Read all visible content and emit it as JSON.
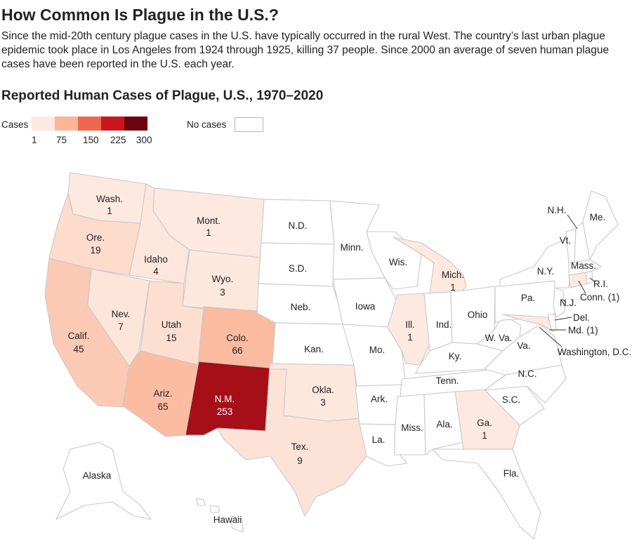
{
  "header": {
    "title": "How Common Is Plague in the U.S.?",
    "intro": "Since the mid-20th century plague cases in the U.S. have typically occurred in the rural West. The country’s last urban plague epidemic took place in Los Angeles from 1924 through 1925, killing 37 people. Since 2000 an average of seven human plague cases have been reported in the U.S. each year.",
    "subtitle": "Reported Human Cases of Plague, U.S., 1970–2020"
  },
  "legend": {
    "cases_label": "Cases",
    "ticks": [
      "1",
      "75",
      "150",
      "225",
      "300"
    ],
    "no_cases_label": "No cases",
    "colors": [
      "#fde9df",
      "#fbb597",
      "#f0674d",
      "#c9161d",
      "#6e0410"
    ]
  },
  "colors": {
    "no_cases": "#ffffff",
    "border": "#c8c8c8",
    "text_dark": "#222222",
    "text_light": "#ffffff"
  },
  "states": {
    "wa": {
      "name": "Wash.",
      "cases": "1"
    },
    "or": {
      "name": "Ore.",
      "cases": "19"
    },
    "ca": {
      "name": "Calif.",
      "cases": "45"
    },
    "id": {
      "name": "Idaho",
      "cases": "4"
    },
    "nv": {
      "name": "Nev.",
      "cases": "7"
    },
    "mt": {
      "name": "Mont.",
      "cases": "1"
    },
    "wy": {
      "name": "Wyo.",
      "cases": "3"
    },
    "ut": {
      "name": "Utah",
      "cases": "15"
    },
    "co": {
      "name": "Colo.",
      "cases": "66"
    },
    "az": {
      "name": "Ariz.",
      "cases": "65"
    },
    "nm": {
      "name": "N.M.",
      "cases": "253"
    },
    "tx": {
      "name": "Tex.",
      "cases": "9"
    },
    "ok": {
      "name": "Okla.",
      "cases": "3"
    },
    "mi": {
      "name": "Mich.",
      "cases": "1"
    },
    "il": {
      "name": "Ill.",
      "cases": "1"
    },
    "ga": {
      "name": "Ga.",
      "cases": "1"
    },
    "ct": {
      "name": "Conn. (1)",
      "cases": "1"
    },
    "md": {
      "name": "Md. (1)",
      "cases": "1"
    },
    "nd": {
      "name": "N.D."
    },
    "sd": {
      "name": "S.D."
    },
    "ne": {
      "name": "Neb."
    },
    "ks": {
      "name": "Kan."
    },
    "mn": {
      "name": "Minn."
    },
    "ia": {
      "name": "Iowa"
    },
    "mo": {
      "name": "Mo."
    },
    "ar": {
      "name": "Ark."
    },
    "la": {
      "name": "La."
    },
    "wi": {
      "name": "Wis."
    },
    "in": {
      "name": "Ind."
    },
    "oh": {
      "name": "Ohio"
    },
    "ky": {
      "name": "Ky."
    },
    "tn": {
      "name": "Tenn."
    },
    "ms": {
      "name": "Miss."
    },
    "al": {
      "name": "Ala."
    },
    "fl": {
      "name": "Fla."
    },
    "sc": {
      "name": "S.C."
    },
    "nc": {
      "name": "N.C."
    },
    "va": {
      "name": "Va."
    },
    "wv": {
      "name": "W. Va."
    },
    "pa": {
      "name": "Pa."
    },
    "ny": {
      "name": "N.Y."
    },
    "vt": {
      "name": "Vt."
    },
    "nh": {
      "name": "N.H."
    },
    "me": {
      "name": "Me."
    },
    "ma": {
      "name": "Mass."
    },
    "ri": {
      "name": "R.I."
    },
    "nj": {
      "name": "N.J."
    },
    "de": {
      "name": "Del."
    },
    "dc": {
      "name": "Washington, D.C."
    },
    "ak": {
      "name": "Alaska"
    },
    "hi": {
      "name": "Hawaii"
    }
  }
}
